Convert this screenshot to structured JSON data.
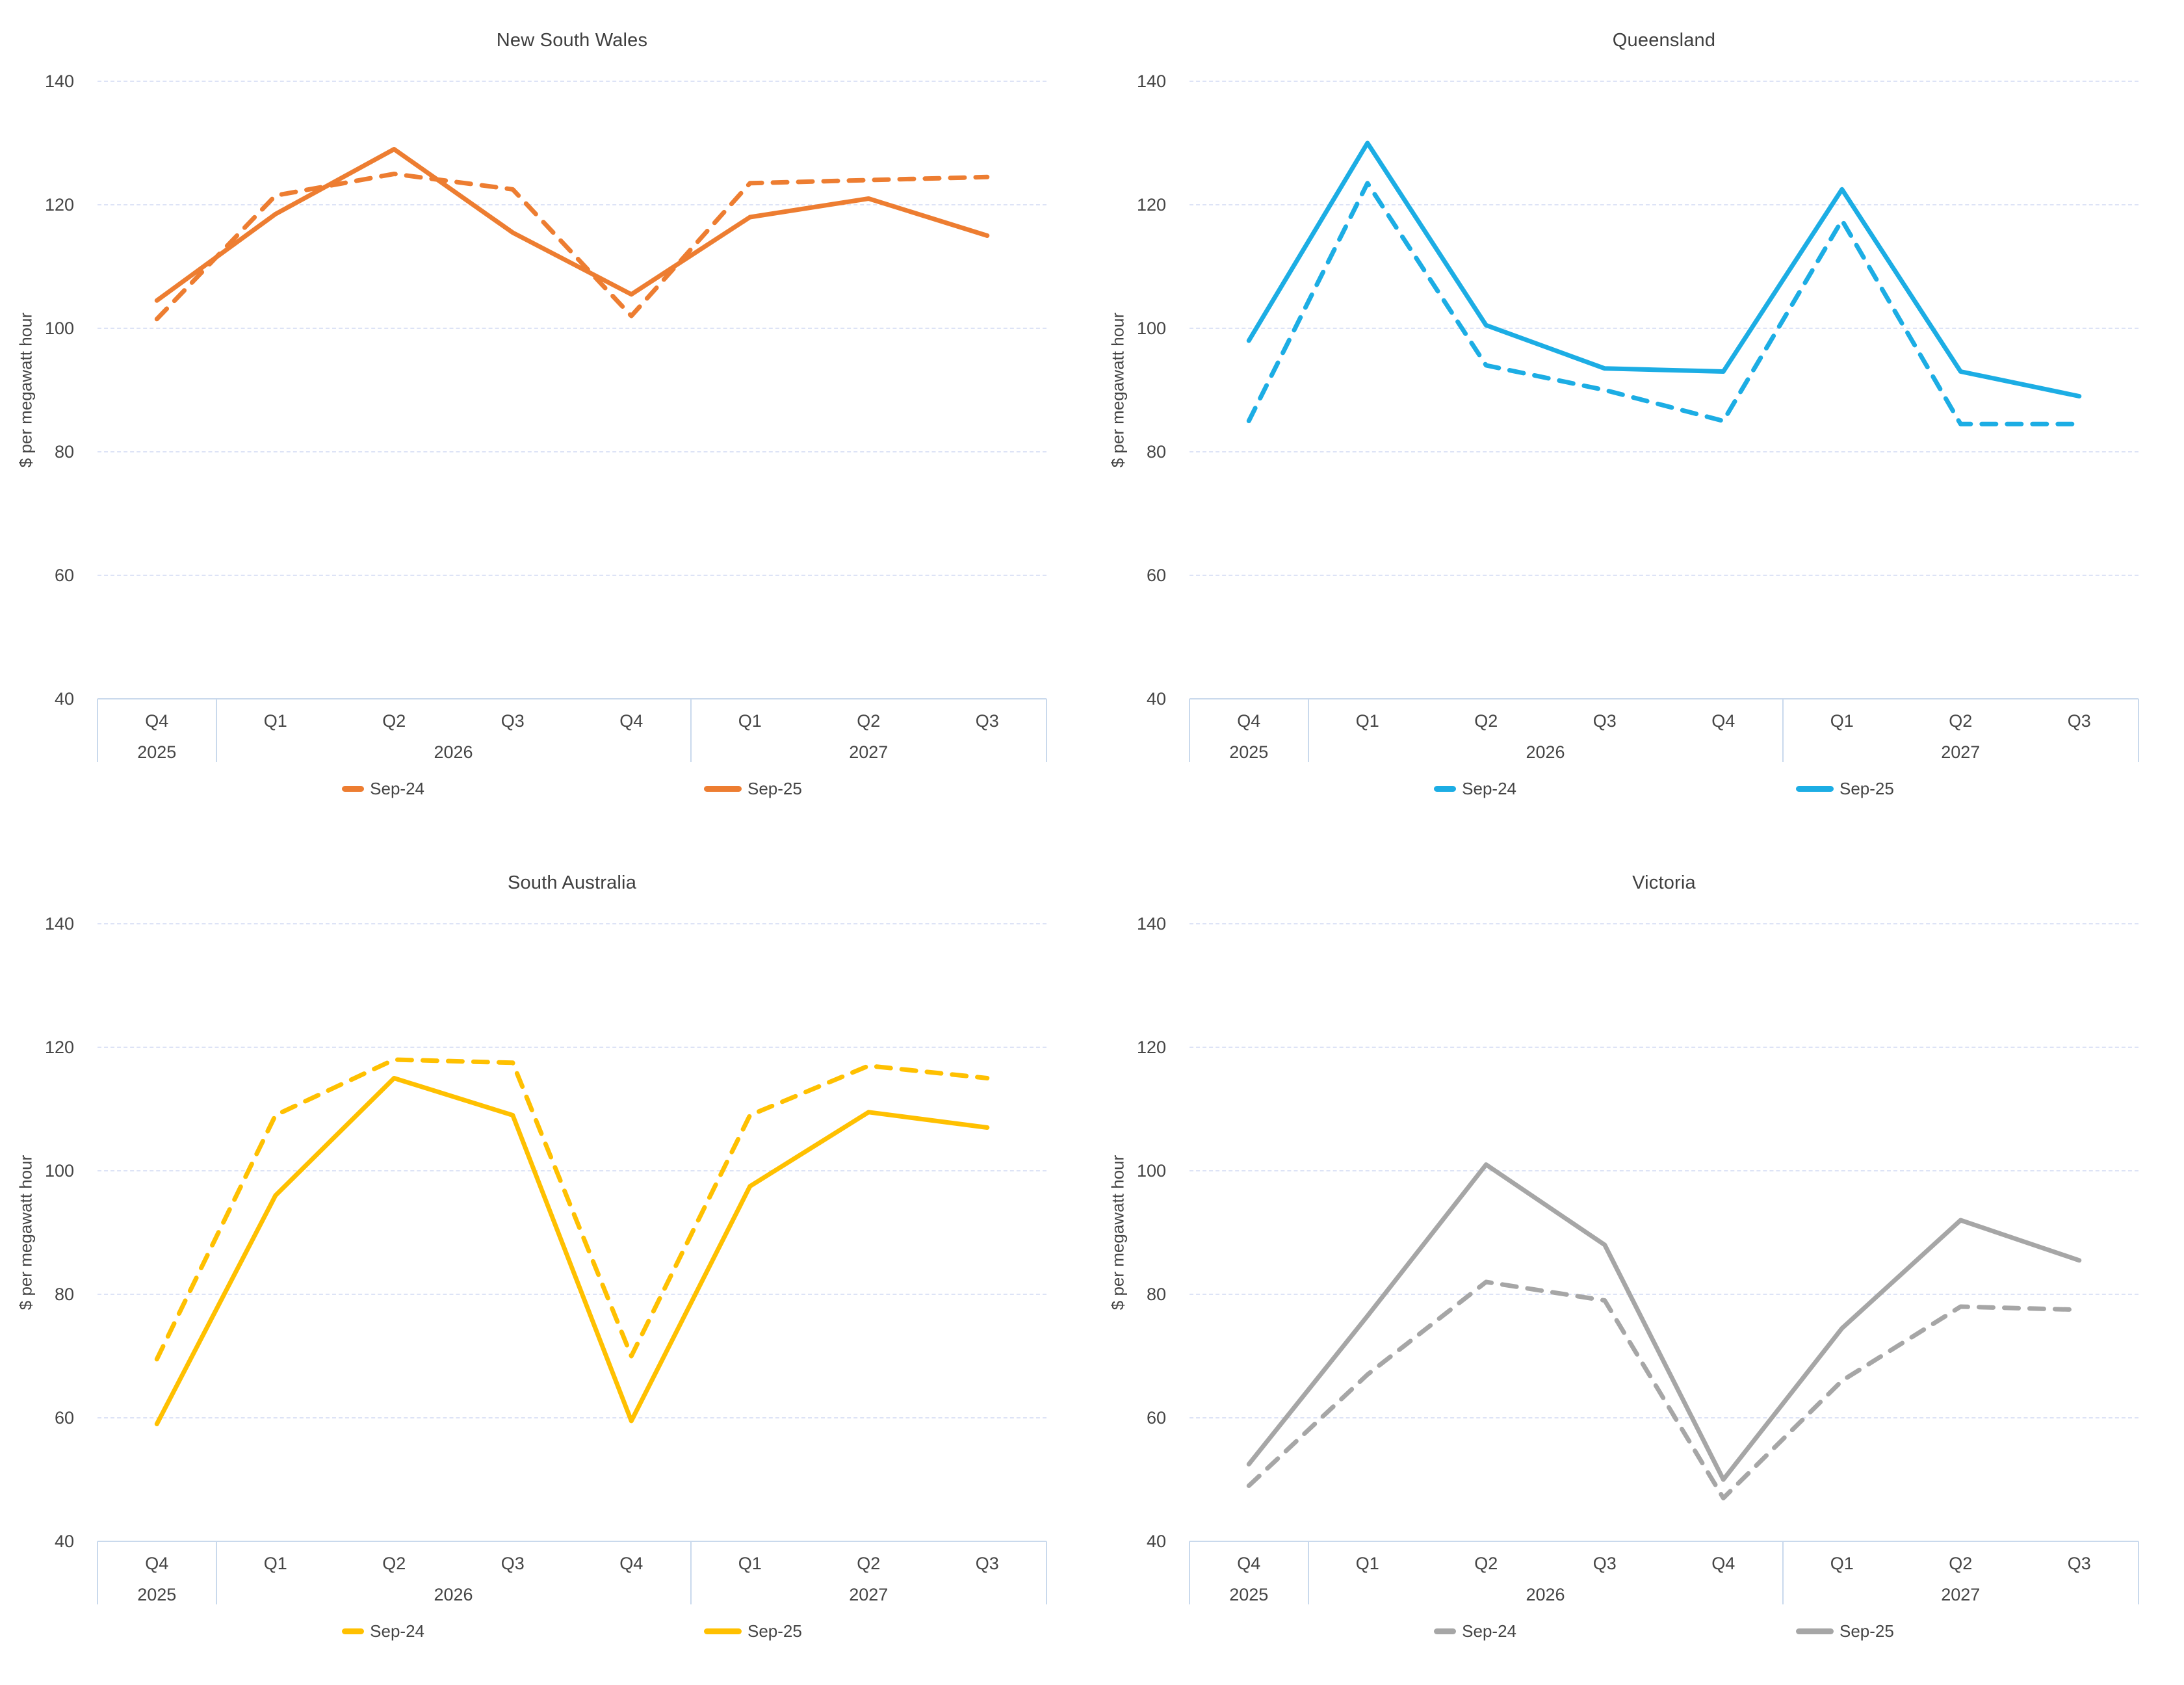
{
  "page": {
    "background": "#ffffff"
  },
  "y_axis": {
    "label": "$ per megawatt hour",
    "ticks": [
      140,
      120,
      100,
      80,
      60,
      40
    ],
    "min": 40,
    "max": 140
  },
  "x_axis": {
    "quarters": [
      "Q4",
      "Q1",
      "Q2",
      "Q3",
      "Q4",
      "Q1",
      "Q2",
      "Q3"
    ],
    "year_groups": [
      {
        "label": "2025",
        "start": 0,
        "count": 1
      },
      {
        "label": "2026",
        "start": 1,
        "count": 4
      },
      {
        "label": "2027",
        "start": 5,
        "count": 3
      }
    ]
  },
  "chart_data": [
    {
      "type": "line",
      "title": "New South Wales",
      "ylabel": "$ per megawatt hour",
      "color": "#ED7D31",
      "ylim": [
        40,
        140
      ],
      "categories": [
        "Q4 2025",
        "Q1 2026",
        "Q2 2026",
        "Q3 2026",
        "Q4 2026",
        "Q1 2027",
        "Q2 2027",
        "Q3 2027"
      ],
      "series": [
        {
          "name": "Sep-24",
          "style": "dashed",
          "values": [
            101.5,
            121.5,
            125,
            122.5,
            102,
            123.5,
            124,
            124.5
          ]
        },
        {
          "name": "Sep-25",
          "style": "solid",
          "values": [
            104.5,
            118.5,
            129,
            115.5,
            105.5,
            118,
            121,
            115
          ]
        }
      ]
    },
    {
      "type": "line",
      "title": "Queensland",
      "ylabel": "$ per megawatt hour",
      "color": "#1CADE4",
      "ylim": [
        40,
        140
      ],
      "categories": [
        "Q4 2025",
        "Q1 2026",
        "Q2 2026",
        "Q3 2026",
        "Q4 2026",
        "Q1 2027",
        "Q2 2027",
        "Q3 2027"
      ],
      "series": [
        {
          "name": "Sep-24",
          "style": "dashed",
          "values": [
            85,
            123.5,
            94,
            90,
            85,
            117.5,
            84.5,
            84.5
          ]
        },
        {
          "name": "Sep-25",
          "style": "solid",
          "values": [
            98,
            130,
            100.5,
            93.5,
            93,
            122.5,
            93,
            89
          ]
        }
      ]
    },
    {
      "type": "line",
      "title": "South Australia",
      "ylabel": "$ per megawatt hour",
      "color": "#FFC000",
      "ylim": [
        40,
        140
      ],
      "categories": [
        "Q4 2025",
        "Q1 2026",
        "Q2 2026",
        "Q3 2026",
        "Q4 2026",
        "Q1 2027",
        "Q2 2027",
        "Q3 2027"
      ],
      "series": [
        {
          "name": "Sep-24",
          "style": "dashed",
          "values": [
            69.5,
            109,
            118,
            117.5,
            70,
            109,
            117,
            115
          ]
        },
        {
          "name": "Sep-25",
          "style": "solid",
          "values": [
            59,
            96,
            115,
            109,
            59.5,
            97.5,
            109.5,
            107
          ]
        }
      ]
    },
    {
      "type": "line",
      "title": "Victoria",
      "ylabel": "$ per megawatt hour",
      "color": "#A6A6A6",
      "ylim": [
        40,
        140
      ],
      "categories": [
        "Q4 2025",
        "Q1 2026",
        "Q2 2026",
        "Q3 2026",
        "Q4 2026",
        "Q1 2027",
        "Q2 2027",
        "Q3 2027"
      ],
      "series": [
        {
          "name": "Sep-24",
          "style": "dashed",
          "values": [
            49,
            67,
            82,
            79,
            47,
            66,
            78,
            77.5
          ]
        },
        {
          "name": "Sep-25",
          "style": "solid",
          "values": [
            52.5,
            76.5,
            101,
            88,
            50,
            74.5,
            92,
            85.5
          ]
        }
      ]
    }
  ]
}
